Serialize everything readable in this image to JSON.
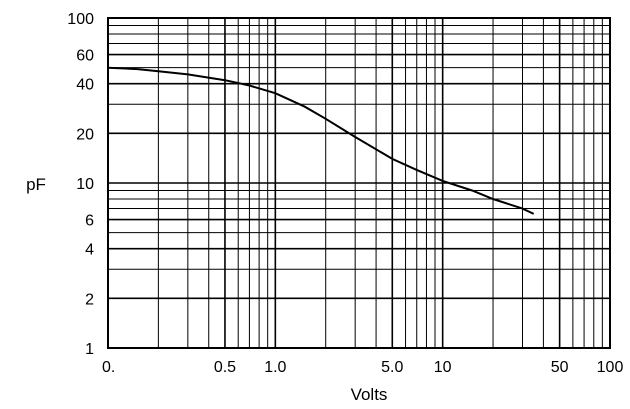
{
  "chart_data": {
    "type": "line",
    "xlabel": "Volts",
    "ylabel": "pF",
    "x_scale": "log",
    "y_scale": "log",
    "xlim": [
      0.1,
      100
    ],
    "ylim": [
      1,
      100
    ],
    "grid": true,
    "x_ticks": [
      {
        "value": 0.1,
        "label": "0."
      },
      {
        "value": 0.5,
        "label": "0.5"
      },
      {
        "value": 1,
        "label": "1.0"
      },
      {
        "value": 5,
        "label": "5.0"
      },
      {
        "value": 10,
        "label": "10"
      },
      {
        "value": 50,
        "label": "50"
      },
      {
        "value": 100,
        "label": "100"
      }
    ],
    "y_ticks": [
      {
        "value": 1,
        "label": "1"
      },
      {
        "value": 2,
        "label": "2"
      },
      {
        "value": 4,
        "label": "4"
      },
      {
        "value": 6,
        "label": "6"
      },
      {
        "value": 10,
        "label": "10"
      },
      {
        "value": 20,
        "label": "20"
      },
      {
        "value": 40,
        "label": "40"
      },
      {
        "value": 60,
        "label": "60"
      },
      {
        "value": 100,
        "label": "100"
      }
    ],
    "series": [
      {
        "color": "#000000",
        "x": [
          0.1,
          0.15,
          0.2,
          0.3,
          0.5,
          0.7,
          1.0,
          1.5,
          2,
          3,
          4,
          5,
          7,
          10,
          15,
          20,
          30,
          35
        ],
        "y": [
          50,
          49,
          47.5,
          45.5,
          42,
          39,
          35,
          29,
          24.5,
          19,
          16,
          14,
          12,
          10.3,
          9,
          8,
          7,
          6.5
        ]
      }
    ]
  }
}
